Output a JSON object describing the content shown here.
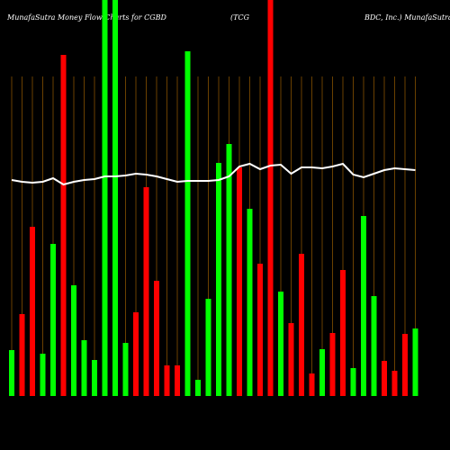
{
  "chart_data": {
    "type": "bar",
    "title_parts": [
      "MunafaSutra  Money Flow  Charts for CGBD",
      "(TCG",
      "BDC, Inc.) MunafaSutra"
    ],
    "categories": [
      null,
      null,
      null,
      null,
      null,
      null,
      null,
      null,
      null,
      null,
      null,
      null,
      null,
      null,
      null,
      null,
      null,
      null,
      null,
      null,
      null,
      null,
      null,
      null,
      null,
      null,
      null,
      null,
      null,
      null,
      null,
      null,
      null,
      null,
      null,
      null,
      null,
      null,
      null,
      null
    ],
    "values": [
      51,
      91,
      188,
      47,
      169,
      379,
      123,
      62,
      40,
      440,
      440,
      59,
      93,
      232,
      128,
      34,
      34,
      383,
      18,
      108,
      259,
      280,
      254,
      208,
      147,
      440,
      116,
      81,
      158,
      25,
      52,
      70,
      140,
      31,
      200,
      111,
      39,
      28,
      69,
      75
    ],
    "colors": [
      "#00ff00",
      "#ff0000",
      "#ff0000",
      "#00ff00",
      "#00ff00",
      "#ff0000",
      "#00ff00",
      "#00ff00",
      "#00ff00",
      "#00ff00",
      "#00ff00",
      "#00ff00",
      "#ff0000",
      "#ff0000",
      "#ff0000",
      "#ff0000",
      "#ff0000",
      "#00ff00",
      "#00ff00",
      "#00ff00",
      "#00ff00",
      "#00ff00",
      "#ff0000",
      "#00ff00",
      "#ff0000",
      "#ff0000",
      "#00ff00",
      "#ff0000",
      "#ff0000",
      "#ff0000",
      "#00ff00",
      "#ff0000",
      "#ff0000",
      "#00ff00",
      "#00ff00",
      "#00ff00",
      "#ff0000",
      "#ff0000",
      "#ff0000",
      "#00ff00"
    ],
    "line": {
      "color": "#ffffff",
      "values": [
        240,
        238,
        237,
        238,
        242,
        235,
        238,
        240,
        241,
        244,
        244,
        245,
        247,
        246,
        244,
        241,
        238,
        239,
        239,
        239,
        240,
        244,
        255,
        258,
        252,
        256,
        257,
        247,
        254,
        254,
        253,
        255,
        258,
        246,
        243,
        247,
        251,
        253,
        252,
        251
      ]
    },
    "ylim": [
      0,
      440
    ],
    "grid_color": "#b36b00"
  }
}
